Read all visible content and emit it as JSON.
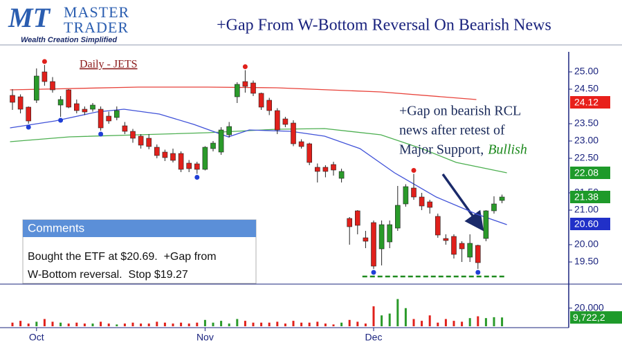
{
  "header": {
    "logo_mark": "MT",
    "logo_line1": "MASTER",
    "logo_line2": "TRADER",
    "tagline": "Wealth Creation Simplified",
    "title": "+Gap From W-Bottom Reversal On Bearish News"
  },
  "comments": {
    "title": "Comments",
    "lines": [
      "Bought the ETF at $20.69.  +Gap from",
      "W-Bottom reversal.  Stop $19.27"
    ]
  },
  "chart_data": {
    "type": "candlestick",
    "subtitle": "Daily - JETS",
    "categories": [
      null,
      null,
      null,
      "Oct",
      null,
      null,
      null,
      null,
      null,
      null,
      null,
      null,
      null,
      null,
      null,
      null,
      null,
      null,
      null,
      null,
      null,
      null,
      null,
      null,
      "Nov",
      null,
      null,
      null,
      null,
      null,
      null,
      null,
      null,
      null,
      null,
      null,
      null,
      null,
      null,
      null,
      null,
      null,
      null,
      null,
      null,
      "Dec",
      null,
      null,
      null,
      null,
      null,
      null,
      null,
      null,
      null,
      null,
      null,
      null,
      null,
      null,
      null,
      null
    ],
    "open": [
      24.32,
      24.28,
      23.98,
      24.18,
      25.0,
      24.72,
      24.04,
      24.48,
      24.08,
      23.92,
      23.92,
      23.92,
      23.72,
      23.68,
      23.44,
      23.28,
      23.14,
      23.08,
      22.82,
      22.68,
      22.64,
      22.64,
      22.36,
      22.34,
      22.18,
      22.78,
      22.68,
      23.18,
      24.28,
      24.72,
      24.68,
      24.38,
      24.18,
      23.88,
      23.64,
      23.52,
      22.98,
      22.92,
      22.24,
      22.24,
      22.32,
      21.92,
      20.76,
      20.98,
      20.2,
      20.64,
      19.88,
      20.08,
      20.48,
      21.18,
      21.64,
      21.38,
      21.24,
      20.82,
      20.18,
      20.24,
      20.04,
      19.64,
      19.98,
      20.18,
      20.98,
      21.28
    ],
    "high": [
      24.5,
      24.35,
      24.0,
      25.1,
      25.2,
      24.85,
      24.3,
      24.5,
      24.2,
      24.0,
      24.1,
      24.0,
      23.85,
      24.0,
      23.55,
      23.35,
      23.2,
      23.2,
      22.9,
      22.75,
      22.78,
      22.7,
      22.45,
      22.4,
      22.85,
      23.0,
      23.4,
      23.55,
      24.7,
      25.05,
      24.75,
      24.4,
      24.25,
      23.95,
      23.7,
      23.6,
      23.05,
      22.95,
      22.35,
      22.3,
      22.4,
      22.2,
      20.8,
      21.0,
      20.4,
      20.7,
      20.7,
      20.7,
      21.7,
      21.75,
      22.05,
      21.5,
      21.3,
      20.9,
      20.3,
      20.3,
      20.1,
      20.3,
      20.0,
      21.0,
      21.4,
      21.45
    ],
    "low": [
      23.9,
      23.8,
      23.5,
      24.1,
      24.6,
      24.4,
      23.7,
      23.95,
      23.8,
      23.75,
      23.85,
      23.3,
      23.5,
      23.6,
      23.2,
      22.95,
      22.78,
      22.76,
      22.5,
      22.42,
      22.38,
      22.1,
      22.1,
      22.05,
      22.15,
      22.7,
      22.6,
      23.1,
      24.1,
      24.4,
      24.3,
      23.9,
      23.75,
      23.2,
      23.4,
      22.85,
      22.78,
      22.3,
      21.8,
      21.95,
      22.0,
      21.8,
      20.0,
      20.3,
      19.9,
      19.3,
      19.4,
      19.9,
      20.4,
      21.1,
      21.3,
      21.0,
      20.9,
      20.2,
      20.0,
      19.6,
      19.5,
      19.5,
      19.3,
      20.1,
      20.9,
      21.2
    ],
    "close": [
      24.12,
      23.92,
      23.58,
      24.88,
      24.72,
      24.48,
      24.2,
      23.98,
      23.88,
      23.84,
      24.04,
      23.38,
      23.58,
      23.88,
      23.28,
      23.08,
      22.88,
      22.84,
      22.58,
      22.52,
      22.44,
      22.18,
      22.2,
      22.18,
      22.82,
      22.94,
      23.32,
      23.42,
      24.64,
      24.58,
      24.38,
      23.98,
      23.88,
      23.32,
      23.48,
      22.92,
      22.84,
      22.38,
      22.12,
      22.12,
      22.16,
      22.12,
      20.52,
      20.56,
      20.1,
      19.38,
      20.58,
      20.58,
      21.14,
      21.68,
      21.38,
      21.12,
      21.08,
      20.28,
      20.12,
      19.72,
      19.88,
      20.04,
      19.48,
      20.98,
      21.18,
      21.38
    ],
    "up_color": "#2a9a2a",
    "down_color": "#e0201b",
    "ylim": [
      18.9,
      25.4
    ],
    "yticks": [
      {
        "value": 25,
        "label": "25.00"
      },
      {
        "value": 24.5,
        "label": "24.50"
      },
      {
        "value": 23.5,
        "label": "23.50"
      },
      {
        "value": 23,
        "label": "23.00"
      },
      {
        "value": 22.5,
        "label": "22.50"
      },
      {
        "value": 21.5,
        "label": "21.50"
      },
      {
        "value": 21,
        "label": "21.00"
      },
      {
        "value": 20,
        "label": "20.00"
      },
      {
        "value": 19.5,
        "label": "19.50"
      }
    ],
    "pivot_highs": [
      4,
      29,
      50
    ],
    "pivot_lows": [
      2,
      6,
      11,
      23,
      45,
      58
    ],
    "pivot_high_color": "#e0201b",
    "pivot_low_color": "#1f3fd6",
    "moving_averages": [
      {
        "color": "#e8423a",
        "x": [
          -0.3,
          15.7,
          24.3,
          32.9,
          45.9,
          57.8
        ],
        "values": [
          24.48,
          24.56,
          24.56,
          24.54,
          24.42,
          24.2
        ]
      },
      {
        "color": "#4caf50",
        "x": [
          -0.3,
          7.1,
          15.7,
          24.3,
          32.9,
          38.9,
          45.9,
          51.0,
          55.3,
          61.6
        ],
        "values": [
          22.98,
          23.12,
          23.18,
          23.24,
          23.34,
          23.36,
          23.18,
          22.78,
          22.38,
          22.08
        ]
      },
      {
        "color": "#3f51d8",
        "x": [
          -0.3,
          5.3,
          10.5,
          13.9,
          18.3,
          22.6,
          26.9,
          29.5,
          34.7,
          38.9,
          43.3,
          47.6,
          52.8,
          57.9,
          61.6
        ],
        "values": [
          23.38,
          23.58,
          23.84,
          23.92,
          23.78,
          23.48,
          23.12,
          23.32,
          23.28,
          23.14,
          22.78,
          22.08,
          21.38,
          20.88,
          20.58
        ]
      }
    ],
    "badges": [
      {
        "value": 24.12,
        "color": "#e8201b"
      },
      {
        "value": 22.08,
        "color": "#1e9a2a"
      },
      {
        "value": 21.38,
        "color": "#1e9a2a"
      },
      {
        "value": 20.6,
        "label": "20.60",
        "color": "#2130c8"
      }
    ],
    "support": {
      "value": 19.08,
      "x": [
        43.6,
        61.3
      ],
      "color": "#1e8a1e"
    },
    "annotation": {
      "lines": [
        "+Gap on bearish RCL",
        "news after retest of",
        "Major Support,"
      ],
      "emphasis": "Bullish",
      "emphasis_color": "#1e8a1e"
    },
    "volume": {
      "values": [
        4000000,
        6000000,
        3000000,
        5000000,
        8000000,
        5000000,
        4000000,
        3000000,
        4000000,
        3000000,
        3000000,
        5000000,
        3000000,
        2000000,
        3000000,
        4000000,
        3000000,
        3000000,
        5000000,
        4000000,
        3000000,
        4000000,
        3000000,
        4000000,
        7000000,
        4000000,
        6000000,
        3000000,
        8000000,
        6000000,
        4000000,
        4000000,
        4000000,
        5000000,
        3000000,
        6000000,
        4000000,
        4000000,
        5000000,
        3000000,
        2000000,
        4000000,
        7000000,
        5000000,
        3000000,
        22000000,
        12000000,
        14000000,
        30000000,
        20000000,
        8000000,
        6000000,
        12000000,
        4000000,
        8000000,
        6000000,
        5000000,
        9000000,
        11000000,
        9000000,
        10000000,
        9722200
      ],
      "ylim": [
        0,
        32000000
      ],
      "yticks": [
        {
          "value": 20000000,
          "label": "20,000"
        }
      ],
      "last_label": "9,722,2",
      "badge_color": "#1e9a2a"
    }
  }
}
